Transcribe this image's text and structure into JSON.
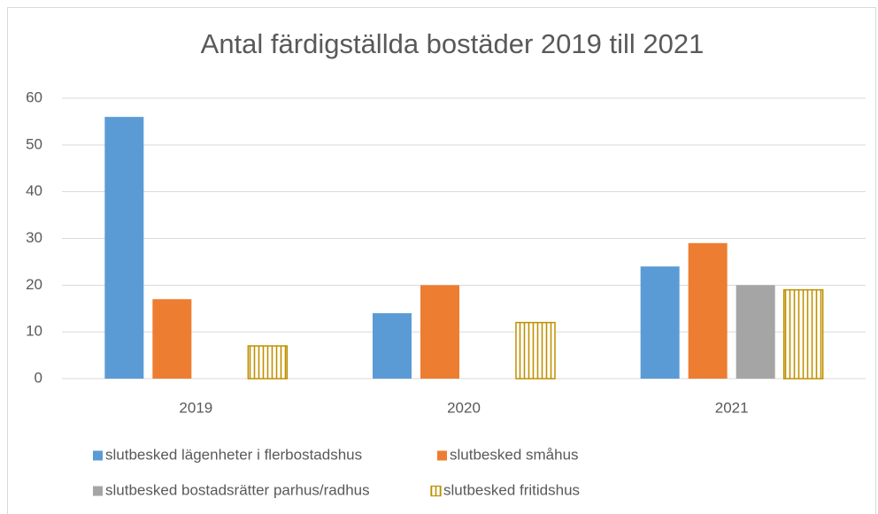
{
  "chart_data": {
    "type": "bar",
    "title": "Antal färdigställda bostäder 2019 till 2021",
    "categories": [
      "2019",
      "2020",
      "2021"
    ],
    "series": [
      {
        "name": "slutbesked lägenheter i flerbostadshus",
        "color": "#5b9bd5",
        "values": [
          56,
          14,
          24
        ]
      },
      {
        "name": "slutbesked småhus",
        "color": "#ed7d31",
        "values": [
          17,
          20,
          29
        ]
      },
      {
        "name": "slutbesked bostadsrätter parhus/radhus",
        "color": "#a5a5a5",
        "values": [
          0,
          0,
          20
        ]
      },
      {
        "name": "slutbesked fritidshus",
        "color": "#bf9000",
        "hatch": "vertical",
        "values": [
          7,
          12,
          19
        ]
      }
    ],
    "ylim": [
      0,
      60
    ],
    "yticks": [
      0,
      10,
      20,
      30,
      40,
      50,
      60
    ],
    "grid": true,
    "legend": "bottom"
  }
}
